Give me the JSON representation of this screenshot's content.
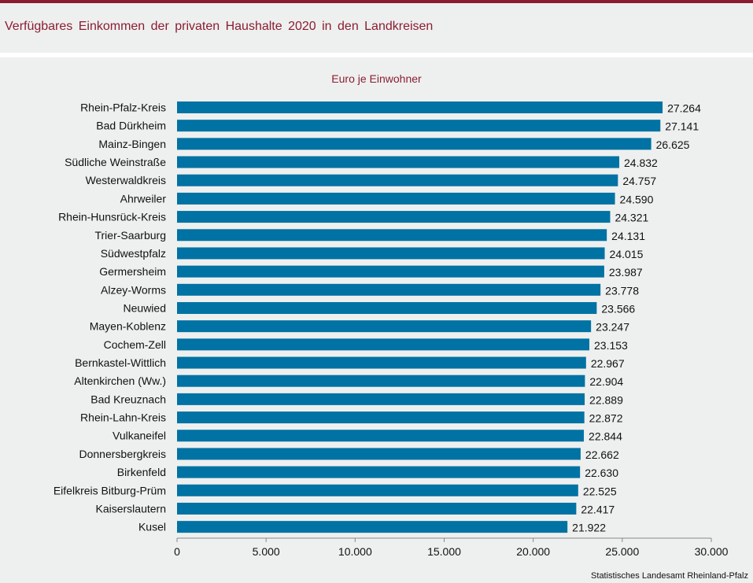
{
  "header": {
    "title": "Verfügbares Einkommen der privaten Haushalte 2020 in den Landkreisen"
  },
  "footer": {
    "source": "Statistisches Landesamt Rheinland-Pfalz"
  },
  "colors": {
    "accent": "#8b1d32",
    "bar": "#0072a3",
    "background": "#eef0ef"
  },
  "chart_data": {
    "type": "bar",
    "orientation": "horizontal",
    "title": "Verfügbares Einkommen der privaten Haushalte 2020 in den Landkreisen",
    "subtitle": "Euro je Einwohner",
    "xlabel": "",
    "ylabel": "",
    "xlim": [
      0,
      30000
    ],
    "xticks": [
      0,
      5000,
      10000,
      15000,
      20000,
      25000,
      30000
    ],
    "xtick_labels": [
      "0",
      "5.000",
      "10.000",
      "15.000",
      "20.000",
      "25.000",
      "30.000"
    ],
    "grid": false,
    "categories": [
      "Rhein-Pfalz-Kreis",
      "Bad Dürkheim",
      "Mainz-Bingen",
      "Südliche Weinstraße",
      "Westerwaldkreis",
      "Ahrweiler",
      "Rhein-Hunsrück-Kreis",
      "Trier-Saarburg",
      "Südwestpfalz",
      "Germersheim",
      "Alzey-Worms",
      "Neuwied",
      "Mayen-Koblenz",
      "Cochem-Zell",
      "Bernkastel-Wittlich",
      "Altenkirchen (Ww.)",
      "Bad Kreuznach",
      "Rhein-Lahn-Kreis",
      "Vulkaneifel",
      "Donnersbergkreis",
      "Birkenfeld",
      "Eifelkreis Bitburg-Prüm",
      "Kaiserslautern",
      "Kusel"
    ],
    "values": [
      27264,
      27141,
      26625,
      24832,
      24757,
      24590,
      24321,
      24131,
      24015,
      23987,
      23778,
      23566,
      23247,
      23153,
      22967,
      22904,
      22889,
      22872,
      22844,
      22662,
      22630,
      22525,
      22417,
      21922
    ],
    "value_labels": [
      "27.264",
      "27.141",
      "26.625",
      "24.832",
      "24.757",
      "24.590",
      "24.321",
      "24.131",
      "24.015",
      "23.987",
      "23.778",
      "23.566",
      "23.247",
      "23.153",
      "22.967",
      "22.904",
      "22.889",
      "22.872",
      "22.844",
      "22.662",
      "22.630",
      "22.525",
      "22.417",
      "21.922"
    ]
  }
}
